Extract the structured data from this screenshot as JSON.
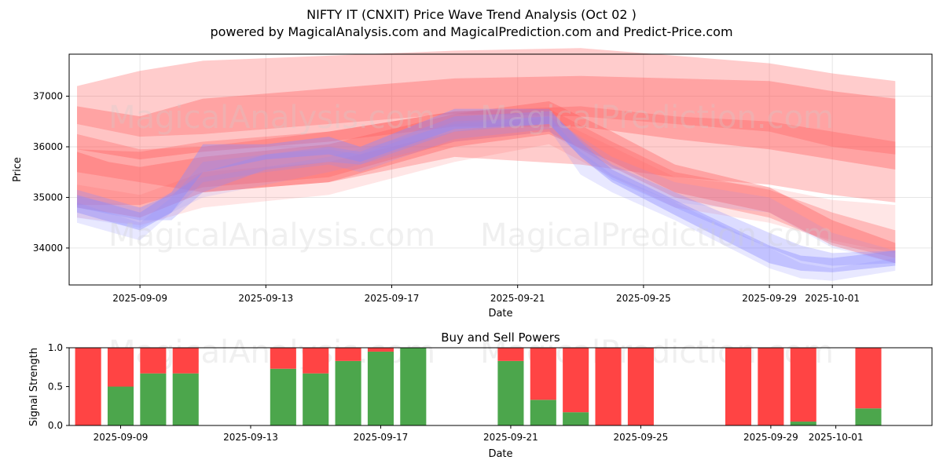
{
  "header": {
    "title_line1": "NIFTY IT (CNXIT) Price Wave Trend Analysis (Oct 02 )",
    "title_line2": "powered by MagicalAnalysis.com and MagicalPrediction.com and Predict-Price.com"
  },
  "watermarks": [
    "MagicalAnalysis.com",
    "MagicalPrediction.com"
  ],
  "colors": {
    "buy": "#4ca64c",
    "sell": "#ff4444",
    "wave_red": "#ff5555",
    "wave_blue": "#8a8aff",
    "grid": "#e6e6e6"
  },
  "chart_data": [
    {
      "type": "area",
      "xlabel": "Date",
      "ylabel": "Price",
      "xlim": [
        "2025-09-06T18:00",
        "2025-10-04T04:00"
      ],
      "ylim": [
        33270,
        37830
      ],
      "x_ticks": [
        "2025-09-09",
        "2025-09-13",
        "2025-09-17",
        "2025-09-21",
        "2025-09-25",
        "2025-09-29",
        "2025-10-01"
      ],
      "y_ticks": [
        34000,
        35000,
        36000,
        37000
      ],
      "grid": true,
      "series": [
        {
          "color": "red",
          "opacity": 0.3,
          "x": [
            "2025-09-07",
            "2025-09-09",
            "2025-09-11",
            "2025-09-15",
            "2025-09-19",
            "2025-09-23",
            "2025-09-26",
            "2025-09-29",
            "2025-10-01",
            "2025-10-03"
          ],
          "lower": [
            36450,
            36200,
            36250,
            36450,
            36650,
            36600,
            36450,
            36300,
            36000,
            35850
          ],
          "upper": [
            37200,
            37500,
            37700,
            37800,
            37900,
            37950,
            37800,
            37650,
            37450,
            37300
          ]
        },
        {
          "color": "red",
          "opacity": 0.35,
          "x": [
            "2025-09-07",
            "2025-09-09",
            "2025-09-11",
            "2025-09-15",
            "2025-09-19",
            "2025-09-23",
            "2025-09-26",
            "2025-09-29",
            "2025-10-01",
            "2025-10-03"
          ],
          "lower": [
            35950,
            35750,
            35900,
            36100,
            36400,
            36400,
            36150,
            35950,
            35750,
            35550
          ],
          "upper": [
            36800,
            36600,
            36950,
            37150,
            37350,
            37400,
            37350,
            37300,
            37100,
            36950
          ]
        },
        {
          "color": "red",
          "opacity": 0.3,
          "x": [
            "2025-09-07",
            "2025-09-09",
            "2025-09-11",
            "2025-09-15",
            "2025-09-19",
            "2025-09-23",
            "2025-09-26",
            "2025-09-29",
            "2025-10-01",
            "2025-10-03"
          ],
          "lower": [
            35500,
            35300,
            35100,
            35300,
            35800,
            35650,
            35400,
            35250,
            35050,
            34900
          ],
          "upper": [
            36250,
            35950,
            36000,
            36300,
            36700,
            36800,
            36600,
            36500,
            36300,
            36100
          ]
        },
        {
          "color": "red",
          "opacity": 0.35,
          "x": [
            "2025-09-07",
            "2025-09-08",
            "2025-09-09",
            "2025-09-11",
            "2025-09-15",
            "2025-09-19",
            "2025-09-22",
            "2025-09-24",
            "2025-09-26",
            "2025-09-29",
            "2025-10-01",
            "2025-10-03"
          ],
          "lower": [
            34800,
            34700,
            34600,
            35100,
            35300,
            36000,
            36250,
            35700,
            35100,
            34700,
            34050,
            33700
          ],
          "upper": [
            35900,
            35700,
            35600,
            35800,
            36050,
            36650,
            36900,
            36300,
            35650,
            35200,
            34550,
            34100
          ]
        },
        {
          "color": "red",
          "opacity": 0.3,
          "x": [
            "2025-09-07",
            "2025-09-09",
            "2025-09-11",
            "2025-09-15",
            "2025-09-19",
            "2025-09-22",
            "2025-09-24",
            "2025-09-26",
            "2025-09-29",
            "2025-10-01",
            "2025-10-03"
          ],
          "lower": [
            34850,
            34850,
            35200,
            35400,
            36100,
            36300,
            35600,
            35000,
            34600,
            34100,
            33800
          ],
          "upper": [
            35950,
            35900,
            36100,
            36300,
            36700,
            36750,
            36100,
            35500,
            35150,
            34700,
            34350
          ]
        },
        {
          "color": "red",
          "opacity": 0.15,
          "x": [
            "2025-09-07",
            "2025-09-09",
            "2025-09-11",
            "2025-09-15",
            "2025-09-19",
            "2025-09-22",
            "2025-09-24",
            "2025-09-26",
            "2025-09-29",
            "2025-10-01",
            "2025-10-03"
          ],
          "lower": [
            34600,
            34450,
            34800,
            35050,
            35700,
            36050,
            35400,
            34800,
            34500,
            34150,
            33900
          ],
          "upper": [
            35250,
            35050,
            35500,
            35700,
            36300,
            36600,
            36000,
            35400,
            35200,
            34950,
            34850
          ]
        },
        {
          "color": "blue",
          "opacity": 0.4,
          "x": [
            "2025-09-07",
            "2025-09-09",
            "2025-09-10",
            "2025-09-11",
            "2025-09-13",
            "2025-09-15",
            "2025-09-16",
            "2025-09-19",
            "2025-09-22",
            "2025-09-23",
            "2025-09-24",
            "2025-09-26",
            "2025-09-29",
            "2025-09-30",
            "2025-10-01",
            "2025-10-03"
          ],
          "lower": [
            34700,
            34350,
            34700,
            35500,
            35750,
            35850,
            35700,
            36350,
            36450,
            35800,
            35300,
            34650,
            33700,
            33550,
            33520,
            33650
          ],
          "upper": [
            35050,
            34700,
            35100,
            36050,
            36050,
            36200,
            36000,
            36750,
            36750,
            36100,
            35550,
            34950,
            34050,
            33850,
            33800,
            33950
          ]
        },
        {
          "color": "blue",
          "opacity": 0.3,
          "x": [
            "2025-09-07",
            "2025-09-09",
            "2025-09-10",
            "2025-09-11",
            "2025-09-13",
            "2025-09-15",
            "2025-09-16",
            "2025-09-19",
            "2025-09-22",
            "2025-09-23",
            "2025-09-24",
            "2025-09-26",
            "2025-09-29",
            "2025-09-30",
            "2025-10-01",
            "2025-10-03"
          ],
          "lower": [
            34800,
            34550,
            34550,
            35100,
            35550,
            35700,
            35650,
            36300,
            36450,
            35800,
            35350,
            34800,
            34000,
            33750,
            33650,
            33700
          ],
          "upper": [
            35150,
            34800,
            35050,
            35500,
            35850,
            36000,
            35900,
            36600,
            36700,
            36150,
            35650,
            35100,
            34300,
            34050,
            33900,
            33950
          ]
        },
        {
          "color": "blue",
          "opacity": 0.2,
          "x": [
            "2025-09-07",
            "2025-09-09",
            "2025-09-10",
            "2025-09-11",
            "2025-09-13",
            "2025-09-15",
            "2025-09-16",
            "2025-09-19",
            "2025-09-22",
            "2025-09-23",
            "2025-09-24",
            "2025-09-26",
            "2025-09-29",
            "2025-09-30",
            "2025-10-01",
            "2025-10-03"
          ],
          "lower": [
            34500,
            34150,
            34700,
            35300,
            35500,
            35650,
            35500,
            36150,
            36350,
            35450,
            35100,
            34550,
            33600,
            33400,
            33350,
            33550
          ],
          "upper": [
            34900,
            34500,
            35000,
            35700,
            35850,
            35950,
            35850,
            36500,
            36600,
            35900,
            35450,
            34900,
            34000,
            33700,
            33600,
            33800
          ]
        },
        {
          "color": "blue",
          "opacity": 0.15,
          "x": [
            "2025-09-07",
            "2025-09-09",
            "2025-09-11",
            "2025-09-15",
            "2025-09-19",
            "2025-09-22",
            "2025-09-24",
            "2025-09-26",
            "2025-09-29",
            "2025-10-01",
            "2025-10-03"
          ],
          "lower": [
            34600,
            34400,
            35000,
            35500,
            36100,
            36300,
            35400,
            34900,
            34700,
            34000,
            33700
          ],
          "upper": [
            35000,
            34800,
            35400,
            35800,
            36450,
            36600,
            35800,
            35300,
            35000,
            34300,
            33950
          ]
        }
      ]
    },
    {
      "type": "bar",
      "title": "Buy and Sell Powers",
      "xlabel": "Date",
      "ylabel": "Signal Strength",
      "xlim": [
        "2025-09-07T10:00",
        "2025-10-03T23:00"
      ],
      "ylim": [
        0,
        1.0
      ],
      "x_ticks": [
        "2025-09-09",
        "2025-09-13",
        "2025-09-17",
        "2025-09-21",
        "2025-09-25",
        "2025-09-29",
        "2025-10-01"
      ],
      "y_ticks": [
        0.0,
        0.5,
        1.0
      ],
      "categories": [
        "2025-09-08",
        "2025-09-09",
        "2025-09-10",
        "2025-09-11",
        "2025-09-14",
        "2025-09-15",
        "2025-09-16",
        "2025-09-17",
        "2025-09-18",
        "2025-09-21",
        "2025-09-22",
        "2025-09-23",
        "2025-09-24",
        "2025-09-25",
        "2025-09-28",
        "2025-09-29",
        "2025-09-30",
        "2025-10-02"
      ],
      "series": [
        {
          "name": "Buy",
          "values": [
            0.0,
            0.5,
            0.67,
            0.67,
            0.73,
            0.67,
            0.83,
            0.95,
            1.0,
            0.83,
            0.33,
            0.17,
            0.0,
            0.0,
            0.0,
            0.0,
            0.05,
            0.22
          ]
        },
        {
          "name": "Sell",
          "values": [
            1.0,
            0.5,
            0.33,
            0.33,
            0.27,
            0.33,
            0.17,
            0.05,
            0.0,
            0.17,
            0.67,
            0.83,
            1.0,
            1.0,
            1.0,
            1.0,
            0.95,
            0.78
          ]
        }
      ]
    }
  ]
}
